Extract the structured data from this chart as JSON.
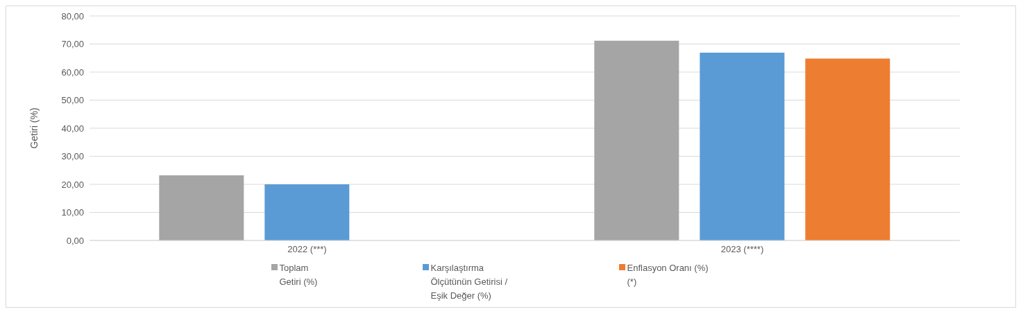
{
  "chart_data": {
    "type": "bar",
    "ylabel": "Getiri (%)",
    "categories": [
      "2022 (***)",
      "2023 (****)"
    ],
    "series": [
      {
        "name": "Toplam Getiri (%)",
        "color": "#a5a5a5",
        "values": [
          23.2,
          71.2
        ]
      },
      {
        "name": "Karşılaştırma Ölçütünün Getirisi / Eşik Değer (%)",
        "color": "#5b9bd5",
        "values": [
          20.0,
          66.9
        ]
      },
      {
        "name": "Enflasyon Oranı (%) (*)",
        "color": "#ed7d31",
        "values": [
          null,
          64.8
        ]
      }
    ],
    "ylim": [
      0,
      80
    ],
    "yticks": [
      {
        "value": 0,
        "label": "0,00"
      },
      {
        "value": 10,
        "label": "10,00"
      },
      {
        "value": 20,
        "label": "20,00"
      },
      {
        "value": 30,
        "label": "30,00"
      },
      {
        "value": 40,
        "label": "40,00"
      },
      {
        "value": 50,
        "label": "50,00"
      },
      {
        "value": 60,
        "label": "60,00"
      },
      {
        "value": 70,
        "label": "70,00"
      },
      {
        "value": 80,
        "label": "80,00"
      }
    ],
    "grid": "y",
    "legend": "bottom"
  }
}
